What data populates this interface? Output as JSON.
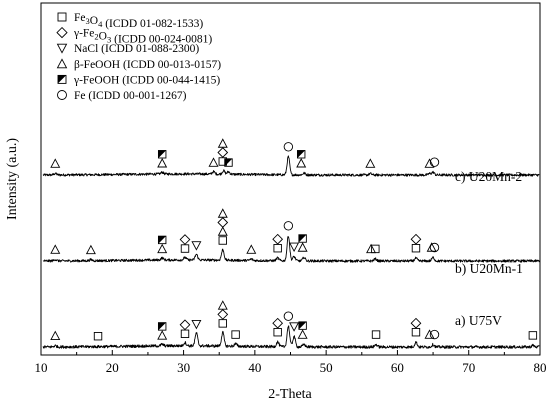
{
  "chart_data": {
    "type": "line",
    "xlabel": "2-Theta",
    "ylabel": "Intensity (a.u.)",
    "xlim": [
      10,
      80
    ],
    "xticks": [
      10,
      20,
      30,
      40,
      50,
      60,
      70,
      80
    ],
    "grid": false,
    "legend_position": "top-left",
    "legend": [
      {
        "marker": "square",
        "label": "Fe3O4 (ICDD 01-082-1533)"
      },
      {
        "marker": "diamond",
        "label": "γ-Fe2O3 (ICDD 00-024-0081)"
      },
      {
        "marker": "triangle-down",
        "label": "NaCl (ICDD 01-088-2300)"
      },
      {
        "marker": "triangle-up",
        "label": "β-FeOOH (ICDD 00-013-0157)"
      },
      {
        "marker": "half-filled-square",
        "label": "γ-FeOOH (ICDD 00-044-1415)"
      },
      {
        "marker": "circle",
        "label": "Fe (ICDD 00-001-1267)"
      }
    ],
    "series": [
      {
        "name": "c) U20Mn-2",
        "peaks": [
          {
            "x": 12.0,
            "h": 0.2
          },
          {
            "x": 27.0,
            "h": 0.25
          },
          {
            "x": 34.2,
            "h": 0.35
          },
          {
            "x": 35.6,
            "h": 0.5
          },
          {
            "x": 36.3,
            "h": 0.35
          },
          {
            "x": 44.7,
            "h": 2.6
          },
          {
            "x": 46.9,
            "h": 0.25
          },
          {
            "x": 56.2,
            "h": 0.2
          },
          {
            "x": 64.5,
            "h": 0.2
          },
          {
            "x": 65.0,
            "h": 0.4
          }
        ],
        "markers": [
          {
            "x": 12.0,
            "stack": [
              "triangle-up"
            ]
          },
          {
            "x": 27.0,
            "stack": [
              "triangle-up",
              "half-filled-square"
            ]
          },
          {
            "x": 34.2,
            "stack": [
              "triangle-up"
            ]
          },
          {
            "x": 35.5,
            "stack": [
              "square",
              "diamond",
              "triangle-up"
            ]
          },
          {
            "x": 36.3,
            "stack": [
              "half-filled-square"
            ]
          },
          {
            "x": 44.7,
            "stack": [
              "circle"
            ]
          },
          {
            "x": 46.5,
            "stack": [
              "triangle-up",
              "half-filled-square"
            ]
          },
          {
            "x": 56.2,
            "stack": [
              "triangle-up"
            ]
          },
          {
            "x": 64.5,
            "stack": [
              "triangle-up"
            ]
          },
          {
            "x": 65.2,
            "stack": [
              "circle"
            ]
          }
        ]
      },
      {
        "name": "b) U20Mn-1",
        "peaks": [
          {
            "x": 12.0,
            "h": 0.2
          },
          {
            "x": 17.0,
            "h": 0.15
          },
          {
            "x": 27.0,
            "h": 0.3
          },
          {
            "x": 30.2,
            "h": 0.35
          },
          {
            "x": 31.8,
            "h": 0.8
          },
          {
            "x": 35.5,
            "h": 1.5
          },
          {
            "x": 39.5,
            "h": 0.2
          },
          {
            "x": 43.2,
            "h": 0.4
          },
          {
            "x": 44.7,
            "h": 3.6
          },
          {
            "x": 45.5,
            "h": 0.6
          },
          {
            "x": 46.9,
            "h": 0.5
          },
          {
            "x": 56.9,
            "h": 0.3
          },
          {
            "x": 62.6,
            "h": 0.4
          },
          {
            "x": 65.0,
            "h": 0.5
          }
        ],
        "markers": [
          {
            "x": 12.0,
            "stack": [
              "triangle-up"
            ]
          },
          {
            "x": 17.0,
            "stack": [
              "triangle-up"
            ]
          },
          {
            "x": 27.0,
            "stack": [
              "triangle-up",
              "half-filled-square"
            ]
          },
          {
            "x": 30.2,
            "stack": [
              "square",
              "diamond"
            ]
          },
          {
            "x": 31.8,
            "stack": [
              "triangle-down"
            ]
          },
          {
            "x": 35.5,
            "stack": [
              "square",
              "triangle-up",
              "diamond",
              "triangle-up"
            ]
          },
          {
            "x": 39.5,
            "stack": [
              "triangle-up"
            ]
          },
          {
            "x": 43.2,
            "stack": [
              "square",
              "diamond"
            ]
          },
          {
            "x": 44.7,
            "stack": [
              "circle"
            ]
          },
          {
            "x": 45.5,
            "stack": [
              "triangle-down"
            ]
          },
          {
            "x": 46.7,
            "stack": [
              "triangle-up",
              "half-filled-square"
            ]
          },
          {
            "x": 56.3,
            "stack": [
              "triangle-up"
            ]
          },
          {
            "x": 56.9,
            "stack": [
              "square"
            ]
          },
          {
            "x": 62.6,
            "stack": [
              "square",
              "diamond"
            ]
          },
          {
            "x": 64.8,
            "stack": [
              "triangle-up"
            ]
          },
          {
            "x": 65.2,
            "stack": [
              "circle"
            ]
          }
        ]
      },
      {
        "name": "a) U75V",
        "peaks": [
          {
            "x": 12.0,
            "h": 0.15
          },
          {
            "x": 27.0,
            "h": 0.2
          },
          {
            "x": 30.2,
            "h": 0.4
          },
          {
            "x": 31.8,
            "h": 1.6
          },
          {
            "x": 35.5,
            "h": 1.7
          },
          {
            "x": 37.3,
            "h": 0.3
          },
          {
            "x": 43.2,
            "h": 0.6
          },
          {
            "x": 44.7,
            "h": 2.6
          },
          {
            "x": 45.5,
            "h": 1.3
          },
          {
            "x": 46.9,
            "h": 0.3
          },
          {
            "x": 57.0,
            "h": 0.3
          },
          {
            "x": 62.6,
            "h": 0.6
          },
          {
            "x": 65.0,
            "h": 0.3
          },
          {
            "x": 79.0,
            "h": 0.2
          }
        ],
        "markers": [
          {
            "x": 12.0,
            "stack": [
              "triangle-up"
            ]
          },
          {
            "x": 18.0,
            "stack": [
              "square"
            ]
          },
          {
            "x": 27.0,
            "stack": [
              "triangle-up",
              "half-filled-square"
            ]
          },
          {
            "x": 30.2,
            "stack": [
              "square",
              "diamond"
            ]
          },
          {
            "x": 31.8,
            "stack": [
              "triangle-down"
            ]
          },
          {
            "x": 35.5,
            "stack": [
              "square",
              "diamond",
              "triangle-up"
            ]
          },
          {
            "x": 37.3,
            "stack": [
              "square"
            ]
          },
          {
            "x": 43.2,
            "stack": [
              "square",
              "diamond"
            ]
          },
          {
            "x": 44.7,
            "stack": [
              "circle"
            ]
          },
          {
            "x": 45.5,
            "stack": [
              "triangle-down"
            ]
          },
          {
            "x": 46.7,
            "stack": [
              "triangle-up",
              "half-filled-square"
            ]
          },
          {
            "x": 57.0,
            "stack": [
              "square"
            ]
          },
          {
            "x": 62.6,
            "stack": [
              "square",
              "diamond"
            ]
          },
          {
            "x": 64.5,
            "stack": [
              "triangle-up"
            ]
          },
          {
            "x": 65.2,
            "stack": [
              "circle"
            ]
          },
          {
            "x": 79.0,
            "stack": [
              "square"
            ]
          }
        ]
      }
    ]
  }
}
